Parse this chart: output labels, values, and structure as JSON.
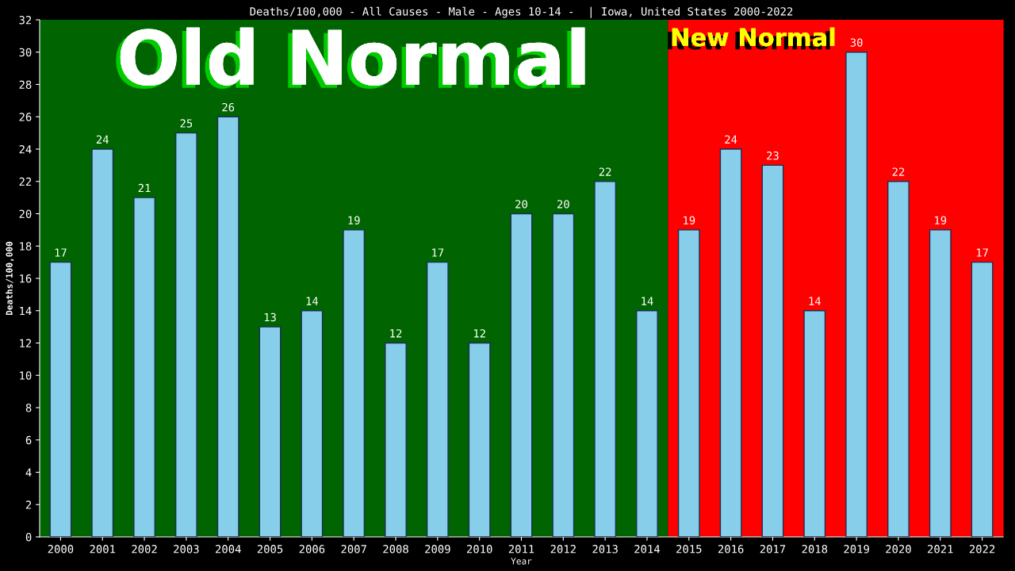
{
  "chart_data": {
    "type": "bar",
    "title": "Deaths/100,000 - All Causes - Male - Ages 10-14 -  | Iowa, United States 2000-2022",
    "xlabel": "Year",
    "ylabel": "Deaths/100,000",
    "categories": [
      "2000",
      "2001",
      "2002",
      "2003",
      "2004",
      "2005",
      "2006",
      "2007",
      "2008",
      "2009",
      "2010",
      "2011",
      "2012",
      "2013",
      "2014",
      "2015",
      "2016",
      "2017",
      "2018",
      "2019",
      "2020",
      "2021",
      "2022"
    ],
    "values": [
      17,
      24,
      21,
      25,
      26,
      13,
      14,
      19,
      12,
      17,
      12,
      20,
      20,
      22,
      14,
      19,
      24,
      23,
      14,
      30,
      22,
      19,
      17
    ],
    "color": "#87ceeb",
    "data_labels": true,
    "ylim": [
      0,
      32
    ],
    "yticks": [
      0,
      2,
      4,
      6,
      8,
      10,
      12,
      14,
      16,
      18,
      20,
      22,
      24,
      26,
      28,
      30,
      32
    ],
    "grid": false,
    "bands": [
      {
        "axis": "x",
        "from": "2000",
        "to": "2014",
        "label": "Old Normal",
        "color": "#006400"
      },
      {
        "axis": "x",
        "from": "2015",
        "to": "2022",
        "label": "New Normal",
        "color": "#ff0000"
      }
    ]
  }
}
